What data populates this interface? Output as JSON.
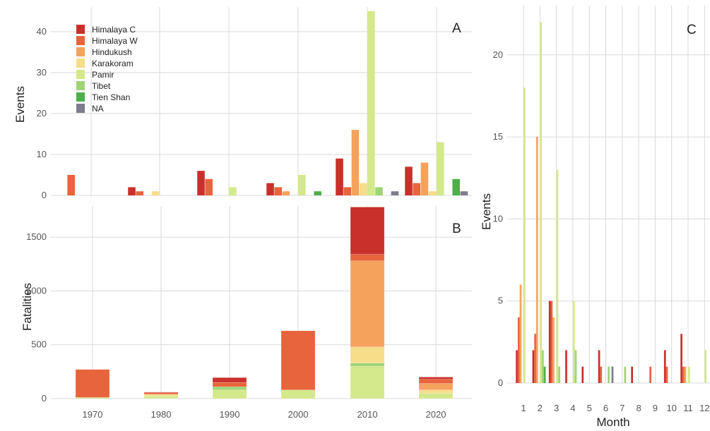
{
  "chart_data": [
    {
      "panel": "A",
      "type": "bar",
      "ylabel": "Events",
      "xlabel": "",
      "ylim": [
        0,
        46
      ],
      "yticks": [
        0,
        10,
        20,
        30,
        40
      ],
      "categories": [
        "1970",
        "1980",
        "1990",
        "2000",
        "2010",
        "2020"
      ],
      "grid": true,
      "legend_position": "top-left",
      "series": [
        {
          "name": "Himalaya C",
          "color": "#c9302c",
          "values": [
            0,
            2,
            6,
            3,
            9,
            7
          ]
        },
        {
          "name": "Himalaya W",
          "color": "#e8643c",
          "values": [
            5,
            1,
            4,
            2,
            2,
            3
          ]
        },
        {
          "name": "Hindukush",
          "color": "#f5a25d",
          "values": [
            0,
            0,
            0,
            1,
            16,
            8
          ]
        },
        {
          "name": "Karakoram",
          "color": "#f7dc8a",
          "values": [
            0,
            1,
            0,
            0,
            3,
            1
          ]
        },
        {
          "name": "Pamir",
          "color": "#d4e88c",
          "values": [
            0,
            0,
            2,
            5,
            45,
            13
          ]
        },
        {
          "name": "Tibet",
          "color": "#9fd477",
          "values": [
            0,
            0,
            0,
            0,
            2,
            0
          ]
        },
        {
          "name": "Tien Shan",
          "color": "#4daf4a",
          "values": [
            0,
            0,
            0,
            1,
            0,
            4
          ]
        },
        {
          "name": "NA",
          "color": "#7d7d8e",
          "values": [
            0,
            0,
            0,
            0,
            1,
            1
          ]
        }
      ]
    },
    {
      "panel": "B",
      "type": "bar",
      "stacked": true,
      "ylabel": "Fatalities",
      "xlabel": "",
      "ylim": [
        0,
        1790
      ],
      "yticks": [
        0,
        500,
        1000,
        1500
      ],
      "categories": [
        "1970",
        "1980",
        "1990",
        "2000",
        "2010",
        "2020"
      ],
      "grid": true,
      "series": [
        {
          "name": "Pamir",
          "color": "#d4e88c",
          "values": [
            10,
            25,
            80,
            80,
            300,
            50
          ]
        },
        {
          "name": "Tibet",
          "color": "#9fd477",
          "values": [
            0,
            0,
            30,
            0,
            30,
            0
          ]
        },
        {
          "name": "Karakoram",
          "color": "#f7dc8a",
          "values": [
            0,
            15,
            0,
            0,
            150,
            30
          ]
        },
        {
          "name": "Hindukush",
          "color": "#f5a25d",
          "values": [
            0,
            0,
            0,
            0,
            800,
            60
          ]
        },
        {
          "name": "Himalaya W",
          "color": "#e8643c",
          "values": [
            260,
            15,
            40,
            550,
            60,
            40
          ]
        },
        {
          "name": "Himalaya C",
          "color": "#c9302c",
          "values": [
            0,
            5,
            45,
            0,
            440,
            20
          ]
        }
      ]
    },
    {
      "panel": "C",
      "type": "bar",
      "ylabel": "Events",
      "xlabel": "Month",
      "ylim": [
        0,
        23
      ],
      "yticks": [
        0,
        5,
        10,
        15,
        20
      ],
      "categories": [
        "1",
        "2",
        "3",
        "4",
        "5",
        "6",
        "7",
        "8",
        "9",
        "10",
        "11",
        "12"
      ],
      "grid": true,
      "series": [
        {
          "name": "Himalaya C",
          "color": "#c9302c",
          "values": [
            2,
            2,
            5,
            2,
            1,
            2,
            0,
            1,
            0,
            2,
            3,
            0
          ]
        },
        {
          "name": "Himalaya W",
          "color": "#e8643c",
          "values": [
            4,
            3,
            5,
            0,
            0,
            1,
            0,
            0,
            1,
            1,
            1,
            0
          ]
        },
        {
          "name": "Hindukush",
          "color": "#f5a25d",
          "values": [
            6,
            15,
            4,
            0,
            0,
            0,
            0,
            0,
            0,
            0,
            1,
            0
          ]
        },
        {
          "name": "Karakoram",
          "color": "#f7dc8a",
          "values": [
            0,
            0,
            0,
            0,
            0,
            0,
            0,
            0,
            0,
            0,
            0,
            0
          ]
        },
        {
          "name": "Pamir",
          "color": "#d4e88c",
          "values": [
            18,
            22,
            13,
            5,
            0,
            0,
            0,
            0,
            0,
            0,
            1,
            2
          ]
        },
        {
          "name": "Tibet",
          "color": "#9fd477",
          "values": [
            0,
            2,
            1,
            2,
            0,
            1,
            1,
            0,
            0,
            0,
            0,
            0
          ]
        },
        {
          "name": "Tien Shan",
          "color": "#4daf4a",
          "values": [
            0,
            1,
            0,
            0,
            0,
            0,
            0,
            0,
            0,
            0,
            0,
            0
          ]
        },
        {
          "name": "NA",
          "color": "#7d7d8e",
          "values": [
            0,
            0,
            0,
            0,
            0,
            1,
            0,
            0,
            0,
            0,
            0,
            0
          ]
        }
      ]
    }
  ]
}
